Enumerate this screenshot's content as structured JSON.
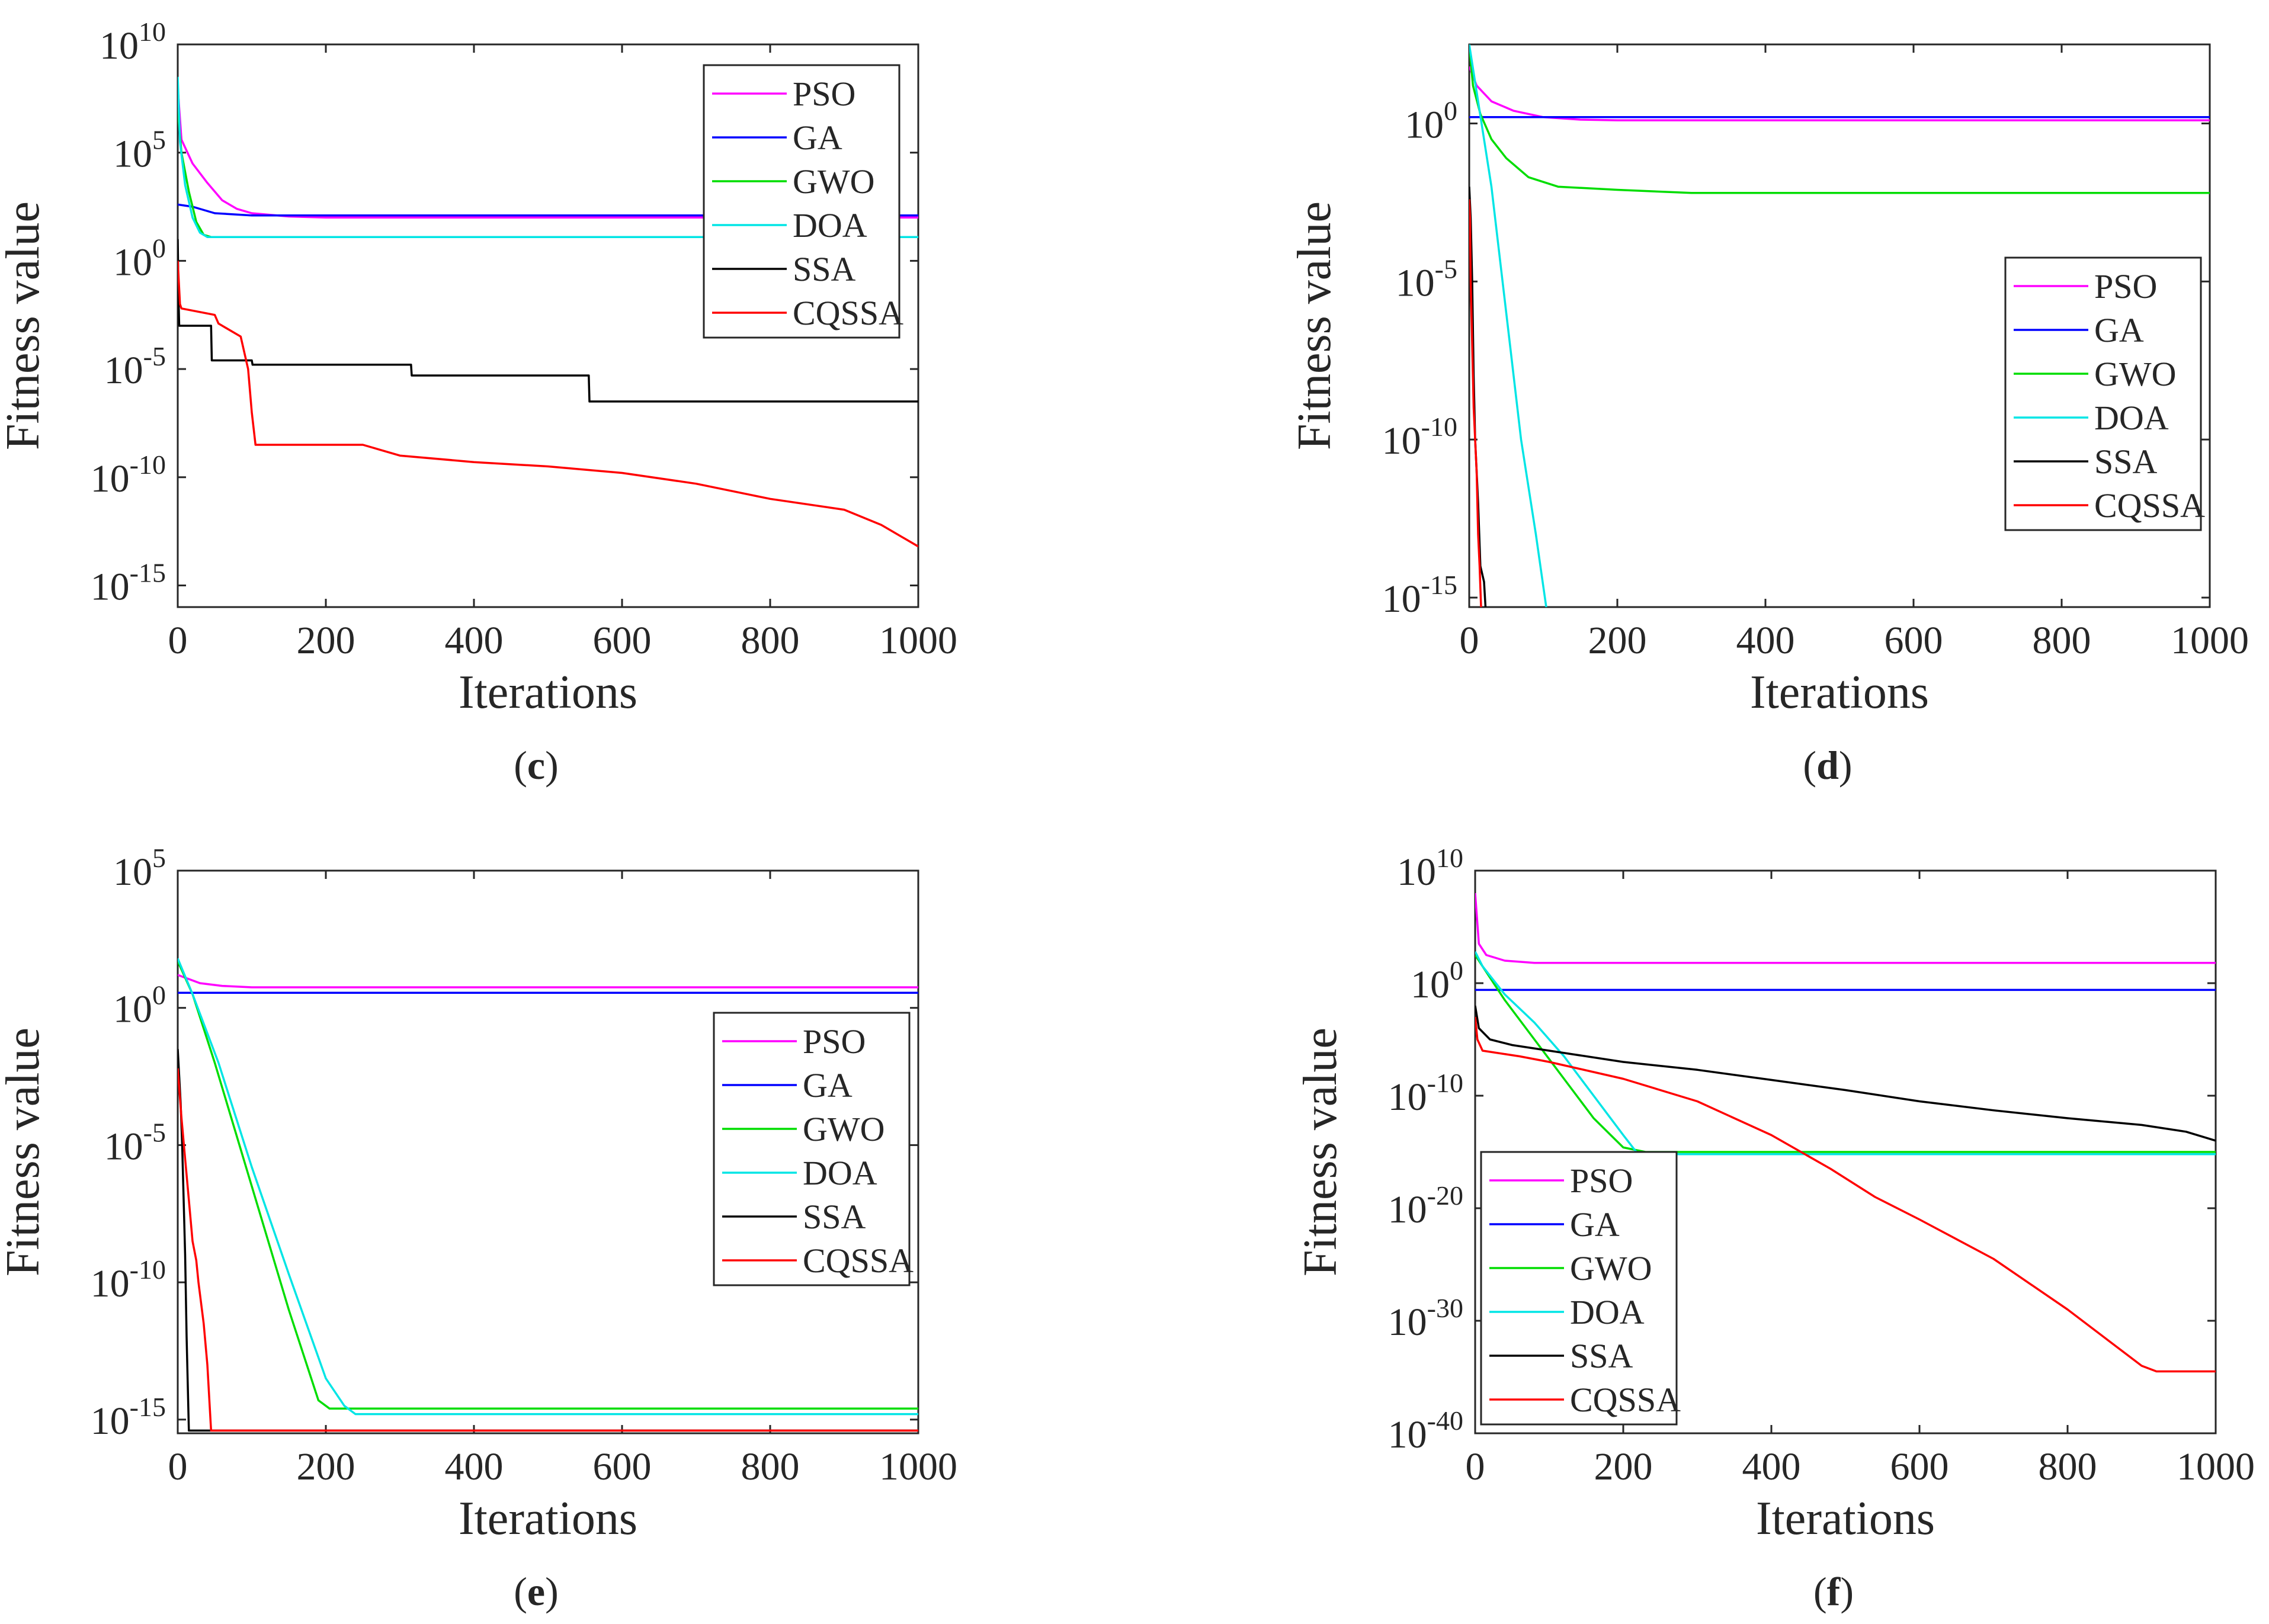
{
  "colors": {
    "PSO": "#ff00ff",
    "GA": "#0000ff",
    "GWO": "#00dd00",
    "DOA": "#00e5e5",
    "SSA": "#000000",
    "CQSSA": "#ff0000"
  },
  "chart_data": [
    {
      "id": "c",
      "caption": "c",
      "type": "line",
      "xlabel": "Iterations",
      "ylabel": "Fitness value",
      "yscale": "log",
      "xlim": [
        0,
        1000
      ],
      "ylim_exp": [
        -16,
        10
      ],
      "xticks": [
        0,
        200,
        400,
        600,
        800,
        1000
      ],
      "yticks": [
        {
          "base": "10",
          "exp": "10",
          "v": 10
        },
        {
          "base": "10",
          "exp": "5",
          "v": 5
        },
        {
          "base": "10",
          "exp": "0",
          "v": 0
        },
        {
          "base": "10",
          "exp": "-5",
          "v": -5
        },
        {
          "base": "10",
          "exp": "-10",
          "v": -10
        },
        {
          "base": "10",
          "exp": "-15",
          "v": -15
        }
      ],
      "legend_position": "top-right",
      "series": [
        {
          "name": "PSO",
          "x": [
            0,
            5,
            20,
            40,
            60,
            80,
            100,
            150,
            200,
            1000
          ],
          "log10_y": [
            8,
            5.6,
            4.5,
            3.6,
            2.8,
            2.4,
            2.2,
            2.05,
            2.0,
            2.0
          ]
        },
        {
          "name": "GA",
          "x": [
            0,
            20,
            50,
            100,
            1000
          ],
          "log10_y": [
            2.6,
            2.5,
            2.2,
            2.1,
            2.1
          ]
        },
        {
          "name": "GWO",
          "x": [
            0,
            5,
            15,
            25,
            35,
            45,
            1000
          ],
          "log10_y": [
            7,
            5,
            3.2,
            1.8,
            1.2,
            1.1,
            1.1
          ]
        },
        {
          "name": "DOA",
          "x": [
            0,
            3,
            10,
            20,
            30,
            40,
            1000
          ],
          "log10_y": [
            8.5,
            5.5,
            3.5,
            2,
            1.3,
            1.1,
            1.1
          ]
        },
        {
          "name": "SSA",
          "x": [
            0,
            1,
            2,
            3,
            45,
            46,
            100,
            101,
            315,
            316,
            555,
            556,
            1000
          ],
          "log10_y": [
            1,
            -1.7,
            -3,
            -3,
            -3,
            -4.6,
            -4.6,
            -4.8,
            -4.8,
            -5.3,
            -5.3,
            -6.5,
            -6.5
          ]
        },
        {
          "name": "CQSSA",
          "x": [
            0,
            3,
            5,
            50,
            55,
            85,
            95,
            100,
            105,
            250,
            300,
            400,
            500,
            600,
            700,
            800,
            900,
            950,
            1000
          ],
          "log10_y": [
            0,
            -2,
            -2.2,
            -2.5,
            -2.9,
            -3.5,
            -5,
            -7,
            -8.5,
            -8.5,
            -9,
            -9.3,
            -9.5,
            -9.8,
            -10.3,
            -11,
            -11.5,
            -12.2,
            -13.2
          ]
        }
      ]
    },
    {
      "id": "d",
      "caption": "d",
      "type": "line",
      "xlabel": "Iterations",
      "ylabel": "Fitness value",
      "yscale": "log",
      "xlim": [
        0,
        1000
      ],
      "ylim_exp": [
        -15.3,
        2.5
      ],
      "xticks": [
        0,
        200,
        400,
        600,
        800,
        1000
      ],
      "yticks": [
        {
          "base": "10",
          "exp": "0",
          "v": 0
        },
        {
          "base": "10",
          "exp": "-5",
          "v": -5
        },
        {
          "base": "10",
          "exp": "-10",
          "v": -10
        },
        {
          "base": "10",
          "exp": "-15",
          "v": -15
        }
      ],
      "legend_position": "right",
      "series": [
        {
          "name": "PSO",
          "x": [
            0,
            10,
            30,
            60,
            100,
            150,
            200,
            1000
          ],
          "log10_y": [
            1.8,
            1.2,
            0.7,
            0.4,
            0.2,
            0.12,
            0.1,
            0.1
          ]
        },
        {
          "name": "GA",
          "x": [
            0,
            1000
          ],
          "log10_y": [
            0.2,
            0.2
          ]
        },
        {
          "name": "GWO",
          "x": [
            0,
            5,
            15,
            30,
            50,
            80,
            120,
            200,
            300,
            1000
          ],
          "log10_y": [
            2.5,
            1.2,
            0.3,
            -0.5,
            -1.1,
            -1.7,
            -2,
            -2.1,
            -2.2,
            -2.2
          ]
        },
        {
          "name": "DOA",
          "x": [
            0,
            10,
            20,
            30,
            40,
            55,
            70,
            90,
            104
          ],
          "log10_y": [
            2.5,
            1,
            -0.5,
            -2,
            -4,
            -7,
            -10,
            -13,
            -15.3
          ]
        },
        {
          "name": "SSA",
          "x": [
            0,
            2,
            4,
            6,
            8,
            12,
            15,
            20,
            22
          ],
          "log10_y": [
            -2,
            -3,
            -5,
            -8,
            -10,
            -12,
            -14,
            -14.5,
            -15.3
          ]
        },
        {
          "name": "CQSSA",
          "x": [
            0,
            1,
            2,
            4,
            6,
            8,
            10,
            12,
            14,
            16
          ],
          "log10_y": [
            -2.4,
            -3,
            -5,
            -7,
            -9,
            -10,
            -11,
            -13,
            -14,
            -15.3
          ]
        }
      ]
    },
    {
      "id": "e",
      "caption": "e",
      "type": "line",
      "xlabel": "Iterations",
      "ylabel": "Fitness value",
      "yscale": "log",
      "xlim": [
        0,
        1000
      ],
      "ylim_exp": [
        -15.5,
        5
      ],
      "xticks": [
        0,
        200,
        400,
        600,
        800,
        1000
      ],
      "yticks": [
        {
          "base": "10",
          "exp": "5",
          "v": 5
        },
        {
          "base": "10",
          "exp": "0",
          "v": 0
        },
        {
          "base": "10",
          "exp": "-5",
          "v": -5
        },
        {
          "base": "10",
          "exp": "-10",
          "v": -10
        },
        {
          "base": "10",
          "exp": "-15",
          "v": -15
        }
      ],
      "legend_position": "right",
      "series": [
        {
          "name": "PSO",
          "x": [
            0,
            30,
            60,
            100,
            1000
          ],
          "log10_y": [
            1.2,
            0.9,
            0.8,
            0.75,
            0.75
          ]
        },
        {
          "name": "GA",
          "x": [
            0,
            1000
          ],
          "log10_y": [
            0.55,
            0.55
          ]
        },
        {
          "name": "GWO",
          "x": [
            0,
            20,
            50,
            100,
            150,
            190,
            205,
            1000
          ],
          "log10_y": [
            1.7,
            0.5,
            -2,
            -6.5,
            -11,
            -14.3,
            -14.6,
            -14.6
          ]
        },
        {
          "name": "DOA",
          "x": [
            0,
            20,
            55,
            100,
            150,
            200,
            225,
            240,
            1000
          ],
          "log10_y": [
            1.8,
            0.5,
            -2,
            -5.8,
            -9.7,
            -13.5,
            -14.5,
            -14.8,
            -14.8
          ]
        },
        {
          "name": "SSA",
          "x": [
            0,
            2,
            4,
            6,
            8,
            10,
            12,
            15,
            1000
          ],
          "log10_y": [
            -1.5,
            -2.5,
            -3.5,
            -5,
            -7,
            -9,
            -12,
            -15.4,
            -15.4
          ]
        },
        {
          "name": "CQSSA",
          "x": [
            0,
            5,
            10,
            15,
            20,
            25,
            28,
            35,
            40,
            45,
            1000
          ],
          "log10_y": [
            -2.2,
            -4,
            -5.5,
            -7,
            -8.5,
            -9.2,
            -10,
            -11.5,
            -13,
            -15.4,
            -15.4
          ]
        }
      ]
    },
    {
      "id": "f",
      "caption": "f",
      "type": "line",
      "xlabel": "Iterations",
      "ylabel": "Fitness value",
      "yscale": "log",
      "xlim": [
        0,
        1000
      ],
      "ylim_exp": [
        -40,
        10
      ],
      "xticks": [
        0,
        200,
        400,
        600,
        800,
        1000
      ],
      "yticks": [
        {
          "base": "10",
          "exp": "10",
          "v": 10
        },
        {
          "base": "10",
          "exp": "0",
          "v": 0
        },
        {
          "base": "10",
          "exp": "-10",
          "v": -10
        },
        {
          "base": "10",
          "exp": "-20",
          "v": -20
        },
        {
          "base": "10",
          "exp": "-30",
          "v": -30
        },
        {
          "base": "10",
          "exp": "-40",
          "v": -40
        }
      ],
      "legend_position": "bottom-left",
      "series": [
        {
          "name": "PSO",
          "x": [
            0,
            5,
            15,
            40,
            80,
            1000
          ],
          "log10_y": [
            8,
            3.5,
            2.5,
            2,
            1.8,
            1.8
          ]
        },
        {
          "name": "GA",
          "x": [
            0,
            1000
          ],
          "log10_y": [
            -0.6,
            -0.6
          ]
        },
        {
          "name": "GWO",
          "x": [
            0,
            10,
            40,
            80,
            120,
            160,
            200,
            230,
            1000
          ],
          "log10_y": [
            2.5,
            1.5,
            -1.5,
            -5,
            -8.5,
            -12,
            -14.6,
            -15,
            -15
          ]
        },
        {
          "name": "DOA",
          "x": [
            0,
            10,
            40,
            80,
            120,
            160,
            200,
            220,
            1000
          ],
          "log10_y": [
            2.8,
            1.5,
            -1,
            -3.5,
            -6.5,
            -10,
            -13.5,
            -15.2,
            -15.2
          ]
        },
        {
          "name": "SSA",
          "x": [
            0,
            5,
            20,
            50,
            100,
            200,
            300,
            400,
            500,
            600,
            700,
            800,
            900,
            960,
            1000
          ],
          "log10_y": [
            -2,
            -4,
            -5,
            -5.5,
            -6,
            -7,
            -7.7,
            -8.6,
            -9.5,
            -10.5,
            -11.3,
            -12,
            -12.6,
            -13.2,
            -14
          ]
        },
        {
          "name": "CQSSA",
          "x": [
            0,
            3,
            10,
            60,
            100,
            200,
            300,
            400,
            480,
            540,
            600,
            700,
            800,
            850,
            900,
            920,
            1000
          ],
          "log10_y": [
            -3,
            -5,
            -6,
            -6.5,
            -7,
            -8.5,
            -10.5,
            -13.5,
            -16.5,
            -19,
            -21,
            -24.5,
            -29,
            -31.5,
            -34,
            -34.5,
            -34.5
          ]
        }
      ]
    }
  ]
}
